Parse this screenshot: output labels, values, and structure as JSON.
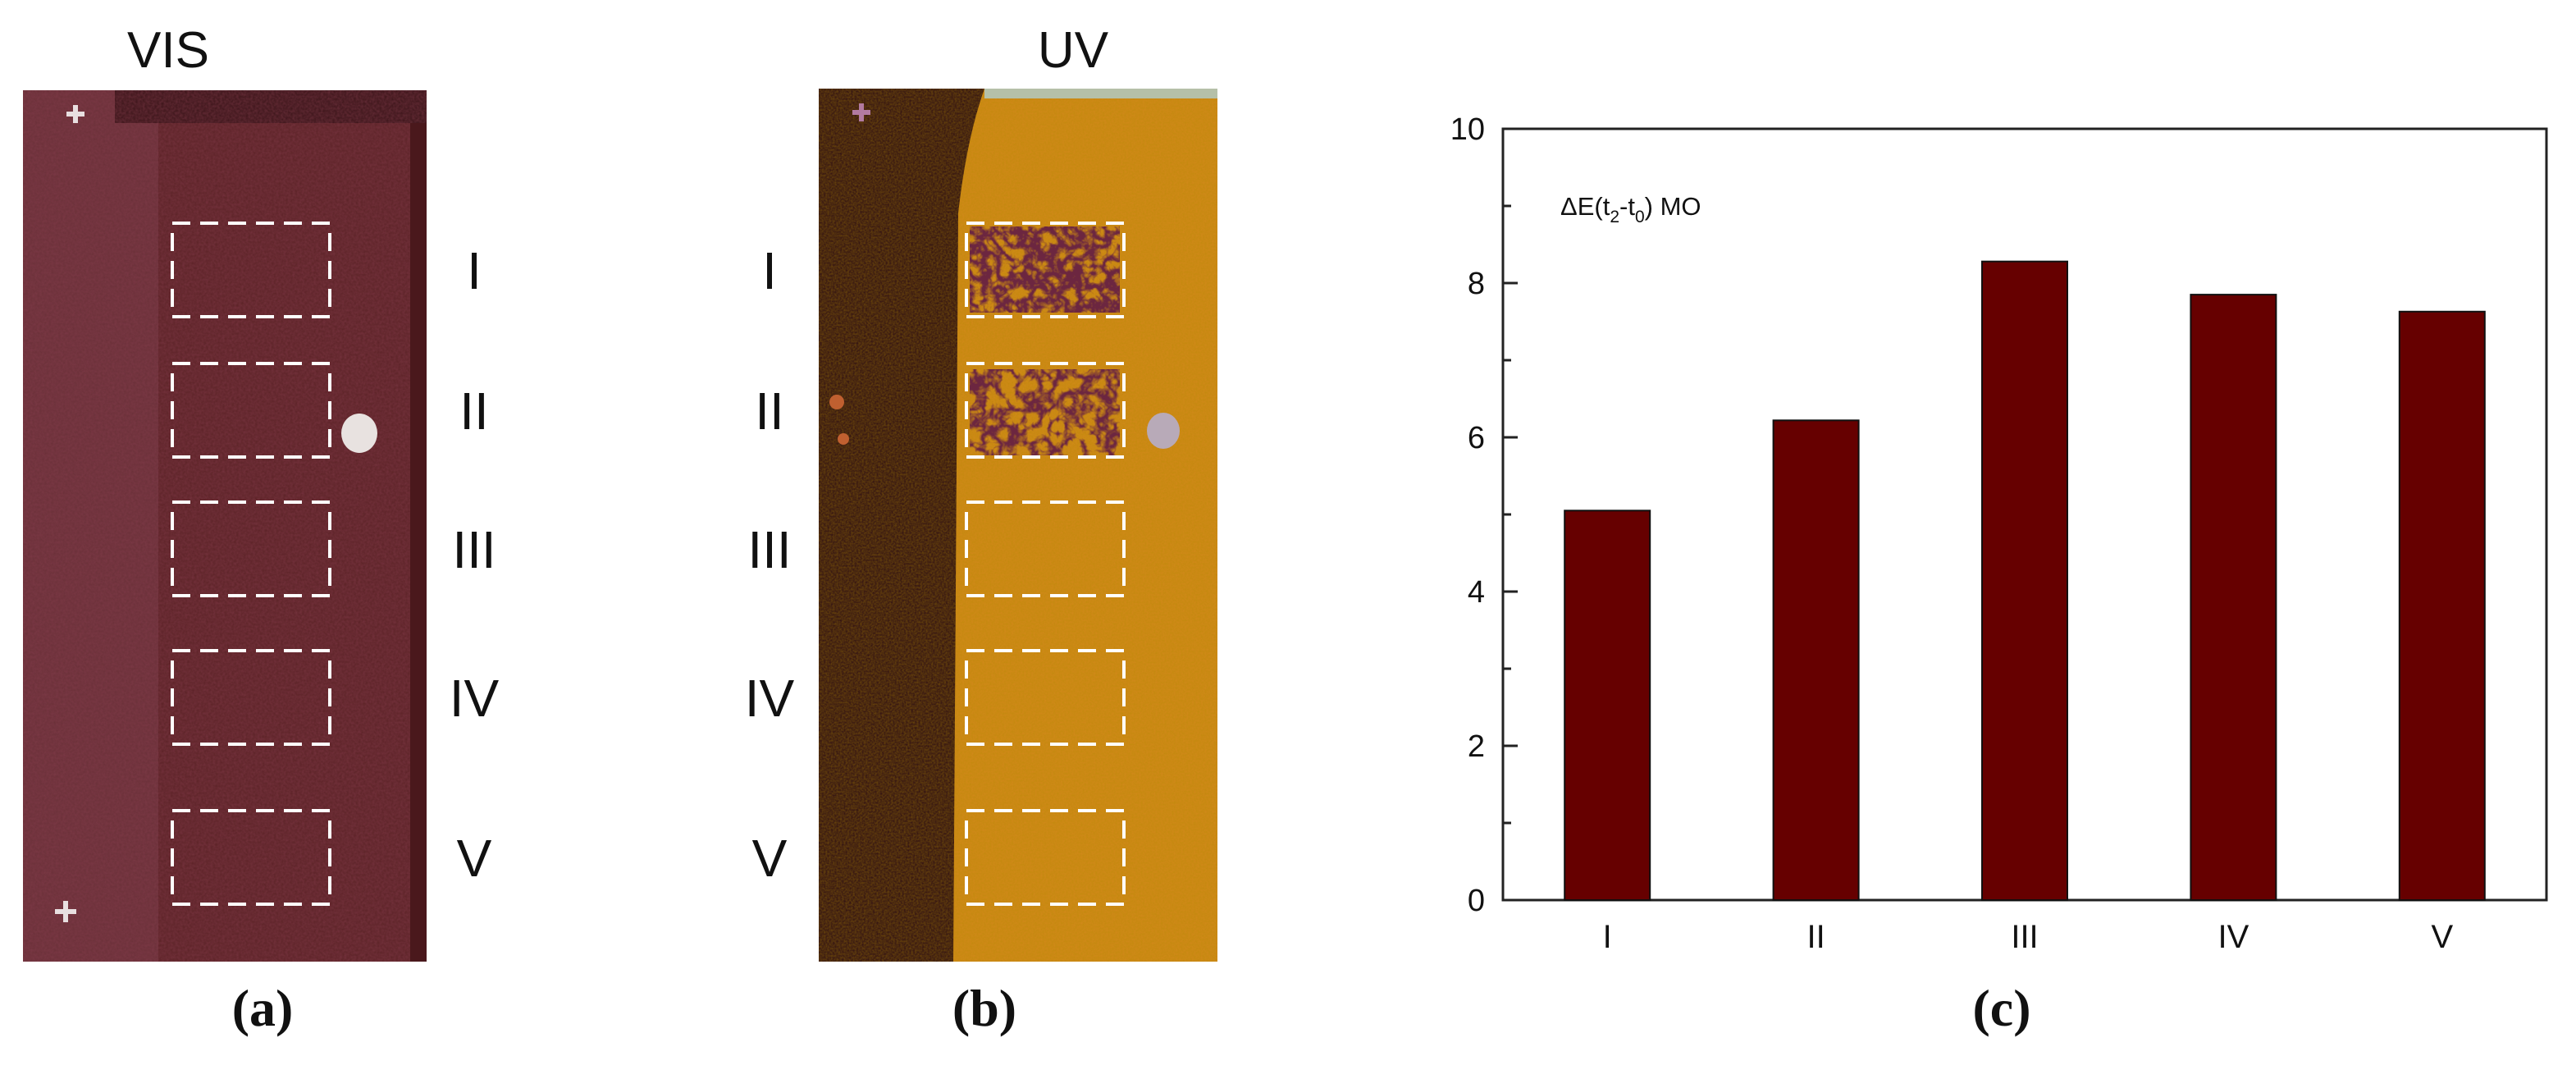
{
  "panel_a": {
    "title": "VIS",
    "caption": "(a)",
    "region_labels": [
      "I",
      "II",
      "III",
      "IV",
      "V"
    ]
  },
  "panel_b": {
    "title": "UV",
    "caption": "(b)",
    "region_labels": [
      "I",
      "II",
      "III",
      "IV",
      "V"
    ]
  },
  "panel_c": {
    "caption": "(c)"
  },
  "colors": {
    "bar": "#660000",
    "vis_base": "#5a2226",
    "uv_base": "#d08a14",
    "uv_dark": "#2a0a12"
  },
  "chart_data": {
    "type": "bar",
    "categories": [
      "I",
      "II",
      "III",
      "IV",
      "V"
    ],
    "values": [
      5.05,
      6.22,
      8.28,
      7.85,
      7.63
    ],
    "annotation": {
      "prefix": "ΔE(t",
      "sub1": "2",
      "mid": "-t",
      "sub2": "0",
      "suffix": ") MO"
    },
    "ylim": [
      0,
      10
    ],
    "yticks": [
      "0",
      "2",
      "4",
      "6",
      "8",
      "10"
    ],
    "xlabel": "",
    "ylabel": "",
    "grid": false
  }
}
